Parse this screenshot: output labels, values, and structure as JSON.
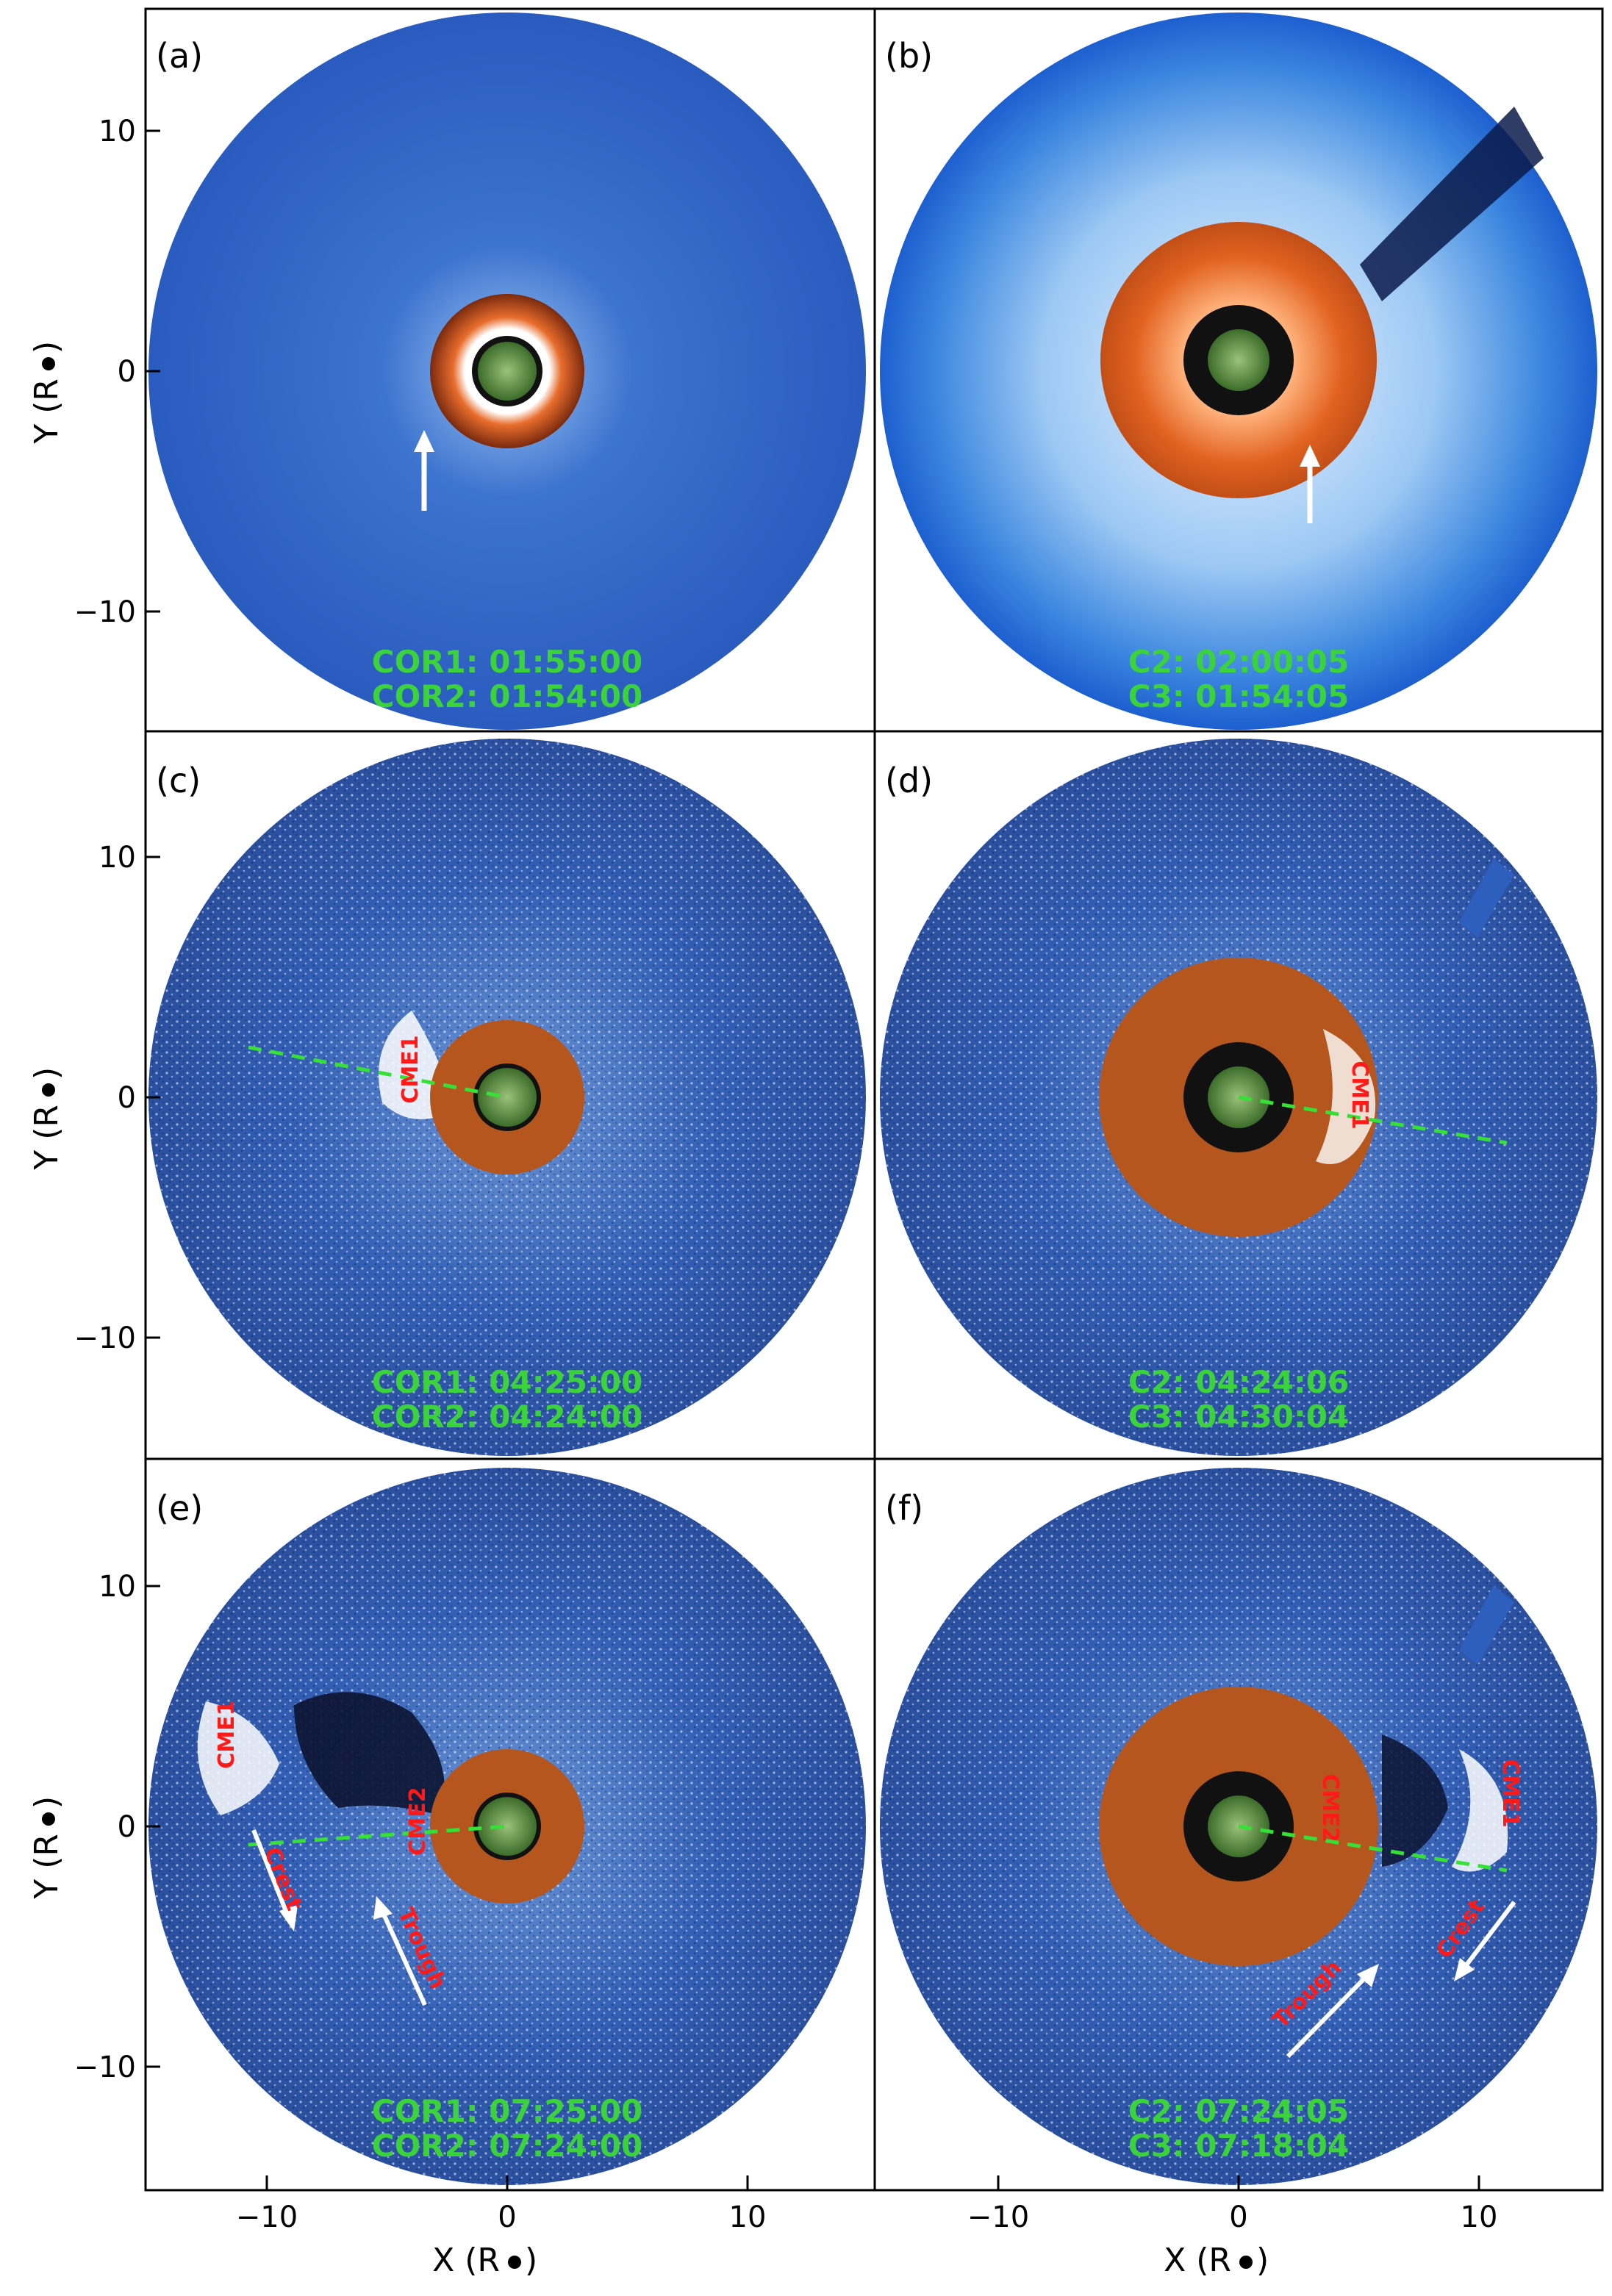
{
  "figure": {
    "panels": [
      {
        "label": "(a)",
        "time1": "COR1: 01:55:00",
        "time2": "COR2: 01:54:00"
      },
      {
        "label": "(b)",
        "time1": "C2: 02:00:05",
        "time2": "C3: 01:54:05"
      },
      {
        "label": "(c)",
        "time1": "COR1: 04:25:00",
        "time2": "COR2: 04:24:00",
        "cme1": "CME1"
      },
      {
        "label": "(d)",
        "time1": "C2: 04:24:06",
        "time2": "C3: 04:30:04",
        "cme1": "CME1"
      },
      {
        "label": "(e)",
        "time1": "COR1: 07:25:00",
        "time2": "COR2: 07:24:00",
        "cme1": "CME1",
        "cme2": "CME2",
        "crest": "Crest",
        "trough": "Trough"
      },
      {
        "label": "(f)",
        "time1": "C2: 07:24:05",
        "time2": "C3: 07:18:04",
        "cme1": "CME1",
        "cme2": "CME2",
        "crest": "Crest",
        "trough": "Trough"
      }
    ],
    "y_axis_label": "Y (R",
    "x_axis_label": "X (R",
    "axis_unit_suffix": ")",
    "y_ticks": [
      "10",
      "0",
      "−10"
    ],
    "x_ticks": [
      "−10",
      "0",
      "10"
    ],
    "colors": {
      "ring_blue": "#2a5cc0",
      "ring_light_blue": "#4a8fe0",
      "occulter_orange": "#b4541e",
      "sun_green": "#5a8a3a",
      "timestamp_green": "#3bd23b",
      "label_red": "#ff1a1a"
    }
  }
}
